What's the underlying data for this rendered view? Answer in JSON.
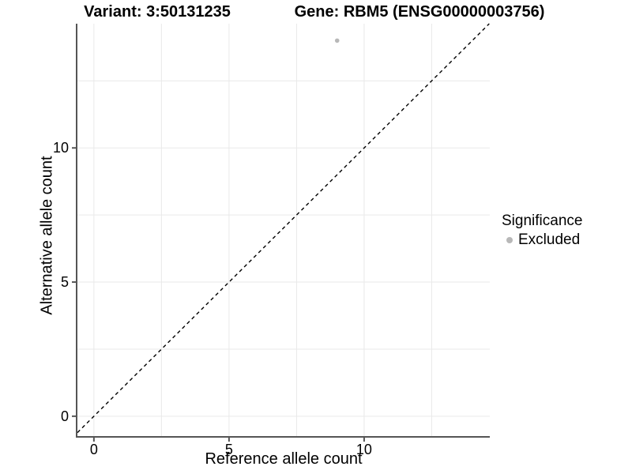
{
  "titles": {
    "variant": "Variant: 3:50131235",
    "gene": "Gene: RBM5 (ENSG00000003756)"
  },
  "colors": {
    "point_excluded": "#b8b8b8",
    "grid": "#e9e9e9",
    "axis": "#555555",
    "reference_line": "#000000",
    "text": "#000000"
  },
  "chart_data": {
    "type": "scatter",
    "titles": [
      "Variant: 3:50131235",
      "Gene: RBM5 (ENSG00000003756)"
    ],
    "xlabel": "Reference allele count",
    "ylabel": "Alternative allele count",
    "xlim": [
      -0.61,
      14.65
    ],
    "ylim": [
      -0.74,
      14.63
    ],
    "x_ticks": [
      0,
      5,
      10
    ],
    "y_ticks": [
      0,
      5,
      10
    ],
    "grid": true,
    "grid_interval": 2.5,
    "series": [
      {
        "name": "Excluded",
        "color": "#b8b8b8",
        "points": [
          {
            "x": 9,
            "y": 14
          }
        ]
      }
    ],
    "reference_line": {
      "type": "identity",
      "style": "dashed",
      "color": "#000000"
    },
    "legend": {
      "title": "Significance",
      "position": "right",
      "items": [
        {
          "label": "Excluded",
          "color": "#b8b8b8"
        }
      ]
    }
  }
}
